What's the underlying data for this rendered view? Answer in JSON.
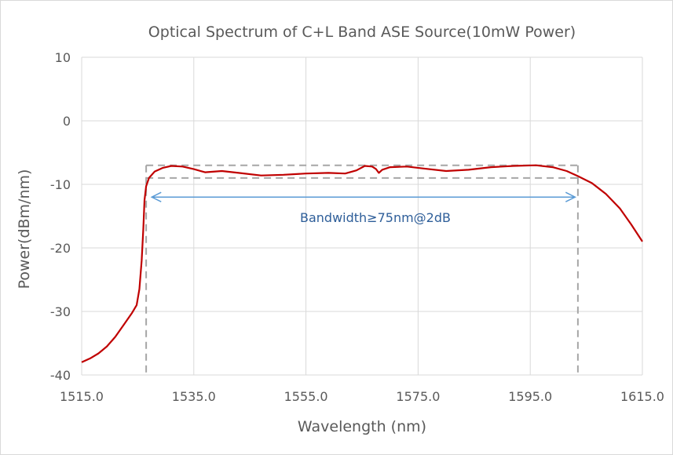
{
  "chart_data": {
    "type": "line",
    "title": "Optical Spectrum of C+L Band ASE Source(10mW Power)",
    "xlabel": "Wavelength (nm)",
    "ylabel": "Power(dBm/nm)",
    "xlim": [
      1515,
      1615
    ],
    "ylim": [
      -40,
      10
    ],
    "x_ticks": [
      "1515.0",
      "1535.0",
      "1555.0",
      "1575.0",
      "1595.0",
      "1615.0"
    ],
    "x_tick_values": [
      1515,
      1535,
      1555,
      1575,
      1595,
      1615
    ],
    "y_ticks": [
      "10",
      "0",
      "-10",
      "-20",
      "-30",
      "-40"
    ],
    "y_tick_values": [
      10,
      0,
      -10,
      -20,
      -30,
      -40
    ],
    "grid": true,
    "series": [
      {
        "color": "#c00000",
        "points": [
          [
            1515.0,
            -38.0
          ],
          [
            1516.5,
            -37.4
          ],
          [
            1518.0,
            -36.6
          ],
          [
            1519.5,
            -35.5
          ],
          [
            1521.0,
            -34.0
          ],
          [
            1522.5,
            -32.1
          ],
          [
            1524.0,
            -30.2
          ],
          [
            1524.8,
            -29.0
          ],
          [
            1525.3,
            -26.5
          ],
          [
            1525.7,
            -22.0
          ],
          [
            1526.0,
            -17.0
          ],
          [
            1526.2,
            -12.5
          ],
          [
            1526.5,
            -10.3
          ],
          [
            1527.0,
            -9.0
          ],
          [
            1528.0,
            -8.0
          ],
          [
            1529.5,
            -7.4
          ],
          [
            1531.0,
            -7.1
          ],
          [
            1533.0,
            -7.2
          ],
          [
            1535.0,
            -7.6
          ],
          [
            1537.0,
            -8.1
          ],
          [
            1540.0,
            -7.9
          ],
          [
            1543.0,
            -8.2
          ],
          [
            1547.0,
            -8.6
          ],
          [
            1551.0,
            -8.5
          ],
          [
            1555.0,
            -8.3
          ],
          [
            1559.0,
            -8.2
          ],
          [
            1562.0,
            -8.3
          ],
          [
            1564.0,
            -7.8
          ],
          [
            1565.5,
            -7.1
          ],
          [
            1566.8,
            -7.2
          ],
          [
            1567.5,
            -7.6
          ],
          [
            1568.0,
            -8.2
          ],
          [
            1568.6,
            -7.7
          ],
          [
            1570.0,
            -7.3
          ],
          [
            1573.0,
            -7.2
          ],
          [
            1576.0,
            -7.5
          ],
          [
            1580.0,
            -7.9
          ],
          [
            1584.0,
            -7.7
          ],
          [
            1588.0,
            -7.3
          ],
          [
            1592.0,
            -7.1
          ],
          [
            1596.0,
            -7.0
          ],
          [
            1599.0,
            -7.3
          ],
          [
            1601.5,
            -7.9
          ],
          [
            1603.5,
            -8.7
          ],
          [
            1606.0,
            -9.8
          ],
          [
            1608.5,
            -11.5
          ],
          [
            1611.0,
            -13.8
          ],
          [
            1613.0,
            -16.3
          ],
          [
            1615.0,
            -19.0
          ]
        ]
      }
    ],
    "annotations": {
      "text": "Bandwidth≥75nm@2dB",
      "arrow_x": [
        1527.5,
        1603.0
      ],
      "arrow_y": -12.0,
      "arrow_color": "#5b9bd5",
      "box_x": [
        1526.5,
        1603.5
      ],
      "box_y": [
        -7.0,
        -9.0
      ],
      "box_bottom": -40,
      "box_color": "#a6a6a6"
    }
  }
}
